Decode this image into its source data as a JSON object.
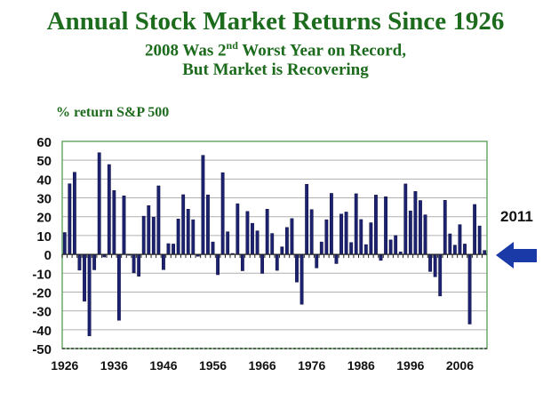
{
  "title": "Annual Stock Market Returns Since 1926",
  "subtitle_line1_pre": "2008 Was 2",
  "subtitle_line1_sup": "nd",
  "subtitle_line1_post": " Worst Year on Record,",
  "subtitle_line2": "But Market is Recovering",
  "callout": {
    "label": "2011",
    "icon": "left-arrow-icon",
    "color": "#1a3aa8"
  },
  "colors": {
    "bar": "#1c2270",
    "grid": "#b0b0b0",
    "border": "#6aa86a",
    "title": "#1d6b1d"
  },
  "chart_data": {
    "type": "bar",
    "title": "Annual Stock Market Returns Since 1926",
    "ylabel": "% return S&P 500",
    "xlabel": "",
    "ylim": [
      -50,
      60
    ],
    "yticks": [
      60,
      50,
      40,
      30,
      20,
      10,
      0,
      -10,
      -20,
      -30,
      -40,
      -50
    ],
    "xtick_labels": [
      "1926",
      "1936",
      "1946",
      "1956",
      "1966",
      "1976",
      "1986",
      "1996",
      "2006"
    ],
    "grid": true,
    "x_start": 1926,
    "values": [
      11.6,
      37.5,
      43.6,
      -8.4,
      -24.9,
      -43.3,
      -8.2,
      54.0,
      -1.4,
      47.7,
      33.9,
      -35.0,
      31.1,
      -0.4,
      -9.8,
      -11.6,
      20.3,
      25.9,
      19.8,
      36.4,
      -8.1,
      5.7,
      5.5,
      18.8,
      31.7,
      24.0,
      18.4,
      -1.0,
      52.6,
      31.6,
      6.6,
      -10.8,
      43.4,
      12.0,
      0.5,
      26.9,
      -8.7,
      22.8,
      16.5,
      12.5,
      -10.1,
      24.0,
      11.1,
      -8.5,
      4.0,
      14.3,
      19.0,
      -14.7,
      -26.5,
      37.2,
      23.8,
      -7.2,
      6.6,
      18.4,
      32.4,
      -4.9,
      21.4,
      22.5,
      6.3,
      32.2,
      18.5,
      5.2,
      16.8,
      31.5,
      -3.2,
      30.6,
      7.7,
      10.0,
      1.3,
      37.4,
      23.1,
      33.4,
      28.6,
      21.0,
      -9.1,
      -11.9,
      -22.1,
      28.7,
      10.9,
      4.9,
      15.8,
      5.5,
      -37.0,
      26.5,
      15.1,
      2.1
    ]
  }
}
